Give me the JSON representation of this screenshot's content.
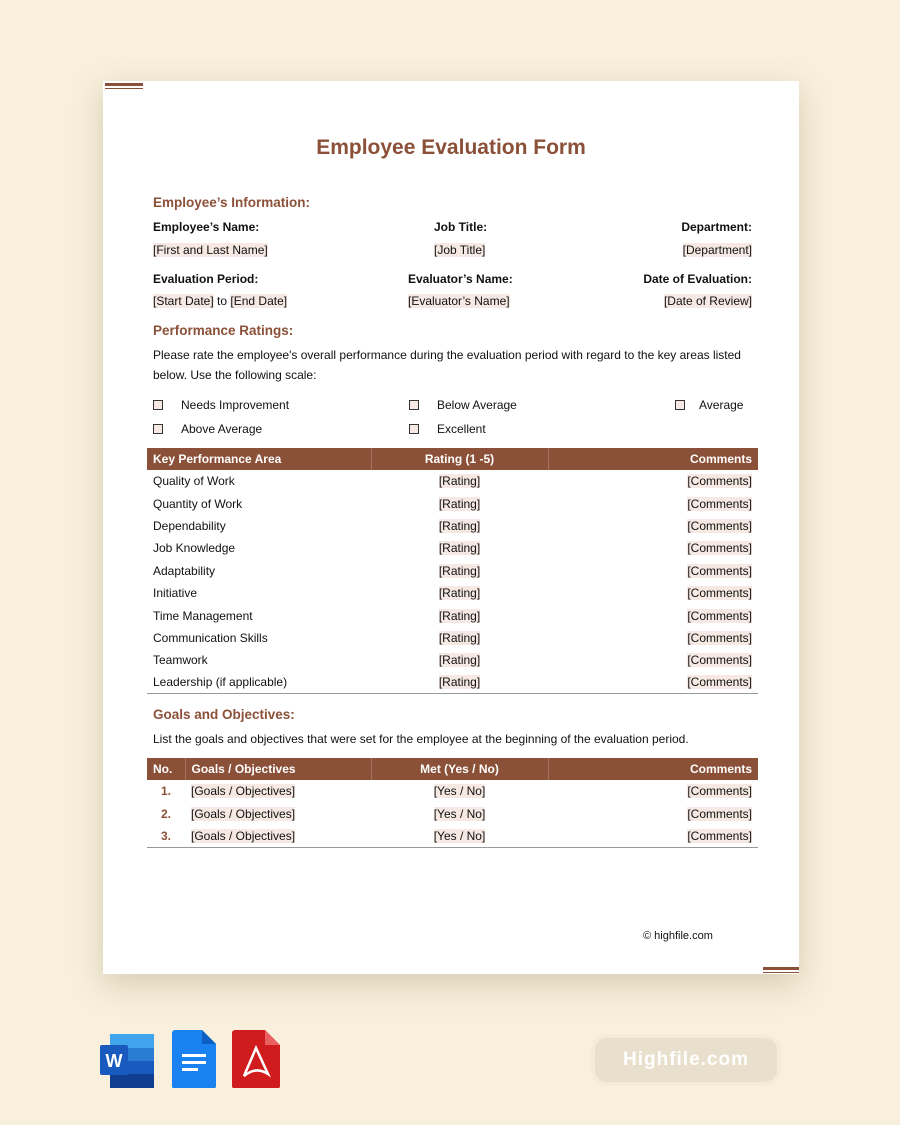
{
  "title": "Employee Evaluation Form",
  "employee_info": {
    "heading": "Employee’s Information:",
    "fields": [
      {
        "label": "Employee’s Name:",
        "value": "[First and Last Name]"
      },
      {
        "label": "Job Title:",
        "value": "[Job Title]"
      },
      {
        "label": "Department:",
        "value": "[Department]"
      },
      {
        "label": "Evaluation Period:",
        "value_start": "[Start Date]",
        "value_to": "to",
        "value_end": "[End Date]"
      },
      {
        "label": "Evaluator’s Name:",
        "value": "[Evaluator’s Name]"
      },
      {
        "label": "Date of Evaluation:",
        "value": "[Date of Review]"
      }
    ]
  },
  "ratings": {
    "heading": "Performance Ratings:",
    "intro": "Please rate the employee's overall performance during the evaluation period with regard to the key areas listed below. Use the following scale:",
    "scale": [
      "Needs Improvement",
      "Below Average",
      "Average",
      "Above Average",
      "Excellent"
    ],
    "columns": [
      "Key Performance Area",
      "Rating (1 -5)",
      "Comments"
    ],
    "rows": [
      "Quality of Work",
      "Quantity of Work",
      "Dependability",
      "Job Knowledge",
      "Adaptability",
      "Initiative",
      "Time Management",
      "Communication Skills",
      "Teamwork",
      "Leadership (if applicable)"
    ],
    "rating_placeholder": "[Rating]",
    "comments_placeholder": "[Comments]"
  },
  "goals": {
    "heading": "Goals and Objectives:",
    "intro": "List the goals and objectives that were set for the employee at the beginning of the evaluation period.",
    "columns": [
      "No.",
      "Goals / Objectives",
      "Met (Yes / No)",
      "Comments"
    ],
    "rows": [
      {
        "no": "1.",
        "goal": "[Goals / Objectives]",
        "met": "[Yes / No]",
        "comments": "[Comments]"
      },
      {
        "no": "2.",
        "goal": "[Goals / Objectives]",
        "met": "[Yes / No]",
        "comments": "[Comments]"
      },
      {
        "no": "3.",
        "goal": "[Goals / Objectives]",
        "met": "[Yes / No]",
        "comments": "[Comments]"
      }
    ]
  },
  "footer": "© highfile.com",
  "watermark": "Highfile.com",
  "icons": [
    "word-icon",
    "google-docs-icon",
    "pdf-icon"
  ],
  "colors": {
    "accent": "#8b5038",
    "background": "#f8f0dc"
  }
}
